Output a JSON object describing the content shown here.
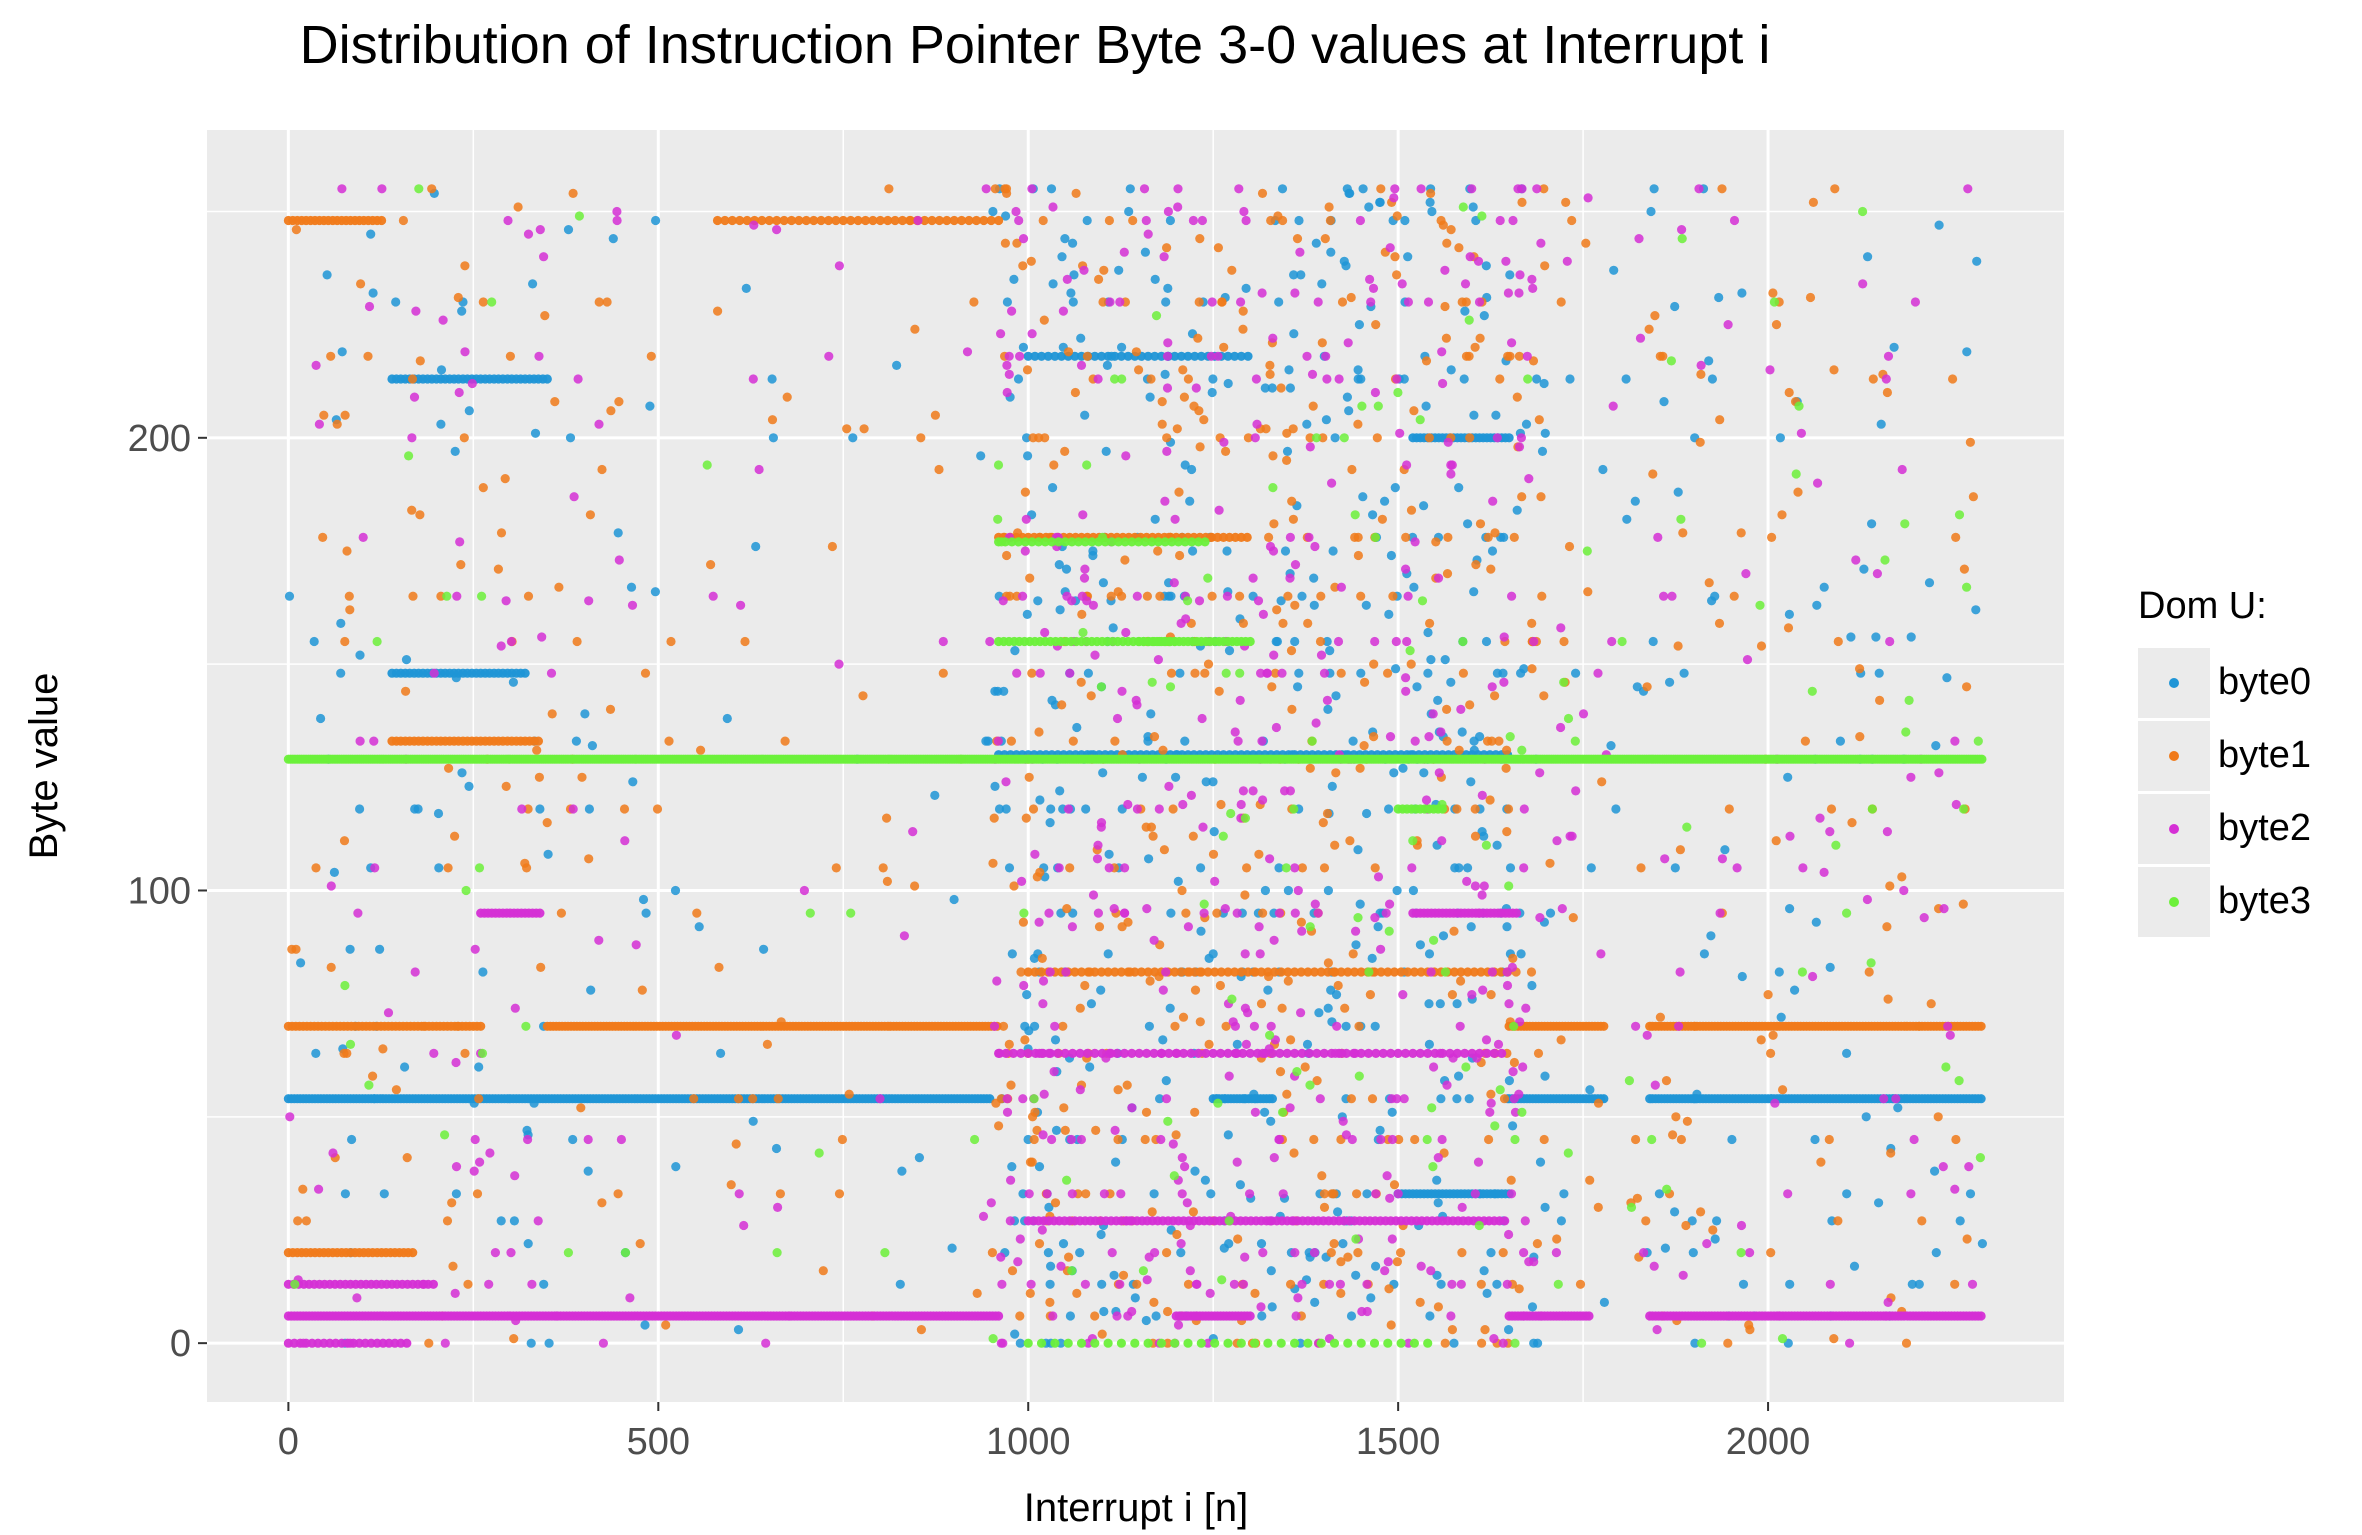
{
  "title": "Distribution of Instruction Pointer Byte 3-0 values at Interrupt i",
  "legend": {
    "title": "Dom U:",
    "items": [
      {
        "label": "byte0",
        "color": "#1f95d6"
      },
      {
        "label": "byte1",
        "color": "#f07a1a"
      },
      {
        "label": "byte2",
        "color": "#d52fd5"
      },
      {
        "label": "byte3",
        "color": "#6cf03a"
      }
    ]
  },
  "chart_data": {
    "type": "scatter",
    "title": "Distribution of Instruction Pointer Byte 3-0 values at Interrupt i",
    "xlabel": "Interrupt i [n]",
    "ylabel": "Byte value",
    "xlim": [
      -110,
      2400
    ],
    "ylim": [
      -13,
      268
    ],
    "xticks": [
      0,
      500,
      1000,
      1500,
      2000
    ],
    "yticks": [
      0,
      100,
      200
    ],
    "grid": true,
    "legend_position": "right",
    "series": [
      {
        "name": "byte0",
        "color": "#1f95d6",
        "bands": [
          {
            "x": [
              0,
              950
            ],
            "y": 54,
            "step": 4
          },
          {
            "x": [
              1250,
              1330
            ],
            "y": 54,
            "step": 4
          },
          {
            "x": [
              1650,
              1780
            ],
            "y": 54,
            "step": 4
          },
          {
            "x": [
              1840,
              2290
            ],
            "y": 54,
            "step": 4
          },
          {
            "x": [
              140,
              350
            ],
            "y": 213,
            "step": 6
          },
          {
            "x": [
              140,
              320
            ],
            "y": 148,
            "step": 6
          },
          {
            "x": [
              1520,
              1650
            ],
            "y": 200,
            "step": 5
          },
          {
            "x": [
              1500,
              1650
            ],
            "y": 33,
            "step": 5
          },
          {
            "x": [
              960,
              1650
            ],
            "y": 130,
            "step": 8
          },
          {
            "x": [
              1000,
              1300
            ],
            "y": 218,
            "step": 9
          }
        ],
        "scatter_ranges": [
          {
            "x": [
              0,
              500
            ],
            "n": 85
          },
          {
            "x": [
              500,
              950
            ],
            "n": 25
          },
          {
            "x": [
              950,
              1700
            ],
            "n": 520
          },
          {
            "x": [
              1700,
              2290
            ],
            "n": 110
          }
        ]
      },
      {
        "name": "byte1",
        "color": "#f07a1a",
        "bands": [
          {
            "x": [
              0,
              260
            ],
            "y": 70,
            "step": 5
          },
          {
            "x": [
              350,
              960
            ],
            "y": 70,
            "step": 4
          },
          {
            "x": [
              1650,
              1780
            ],
            "y": 70,
            "step": 4
          },
          {
            "x": [
              1840,
              2290
            ],
            "y": 70,
            "step": 4
          },
          {
            "x": [
              0,
              130
            ],
            "y": 248,
            "step": 6
          },
          {
            "x": [
              0,
              170
            ],
            "y": 20,
            "step": 6
          },
          {
            "x": [
              140,
              340
            ],
            "y": 133,
            "step": 6
          },
          {
            "x": [
              580,
              960
            ],
            "y": 248,
            "step": 10
          },
          {
            "x": [
              960,
              1300
            ],
            "y": 178,
            "step": 8
          },
          {
            "x": [
              1000,
              1650
            ],
            "y": 82,
            "step": 9
          }
        ],
        "scatter_ranges": [
          {
            "x": [
              0,
              500
            ],
            "n": 100
          },
          {
            "x": [
              500,
              950
            ],
            "n": 45
          },
          {
            "x": [
              950,
              1700
            ],
            "n": 500
          },
          {
            "x": [
              1700,
              2290
            ],
            "n": 120
          }
        ]
      },
      {
        "name": "byte2",
        "color": "#d52fd5",
        "bands": [
          {
            "x": [
              0,
              960
            ],
            "y": 6,
            "step": 4
          },
          {
            "x": [
              1200,
              1300
            ],
            "y": 6,
            "step": 4
          },
          {
            "x": [
              1650,
              1760
            ],
            "y": 6,
            "step": 4
          },
          {
            "x": [
              1840,
              2290
            ],
            "y": 6,
            "step": 4
          },
          {
            "x": [
              0,
              160
            ],
            "y": 0,
            "step": 8
          },
          {
            "x": [
              0,
              200
            ],
            "y": 13,
            "step": 7
          },
          {
            "x": [
              260,
              340
            ],
            "y": 95,
            "step": 5
          },
          {
            "x": [
              1520,
              1660
            ],
            "y": 95,
            "step": 5
          },
          {
            "x": [
              960,
              1640
            ],
            "y": 64,
            "step": 10
          },
          {
            "x": [
              1000,
              1650
            ],
            "y": 27,
            "step": 7
          }
        ],
        "scatter_ranges": [
          {
            "x": [
              0,
              500
            ],
            "n": 80
          },
          {
            "x": [
              500,
              950
            ],
            "n": 25
          },
          {
            "x": [
              950,
              1700
            ],
            "n": 480
          },
          {
            "x": [
              1700,
              2290
            ],
            "n": 90
          }
        ]
      },
      {
        "name": "byte3",
        "color": "#6cf03a",
        "bands": [
          {
            "x": [
              0,
              2290
            ],
            "y": 129,
            "step": 3
          },
          {
            "x": [
              960,
              1200
            ],
            "y": 155,
            "step": 7
          },
          {
            "x": [
              960,
              1240
            ],
            "y": 177,
            "step": 9
          },
          {
            "x": [
              1150,
              1300
            ],
            "y": 155,
            "step": 6
          },
          {
            "x": [
              1500,
              1560
            ],
            "y": 118,
            "step": 6
          },
          {
            "x": [
              1000,
              1550
            ],
            "y": 0,
            "step": 18
          }
        ],
        "scatter_ranges": [
          {
            "x": [
              0,
              500
            ],
            "n": 18
          },
          {
            "x": [
              500,
              950
            ],
            "n": 8
          },
          {
            "x": [
              950,
              1700
            ],
            "n": 80
          },
          {
            "x": [
              1700,
              2290
            ],
            "n": 40
          }
        ]
      }
    ]
  }
}
